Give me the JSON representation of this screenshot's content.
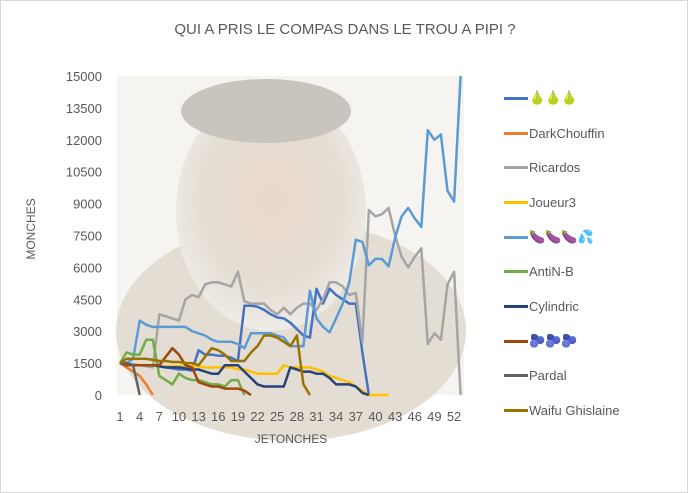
{
  "chart_data": {
    "type": "line",
    "title": "QUI A PRIS LE COMPAS DANS LE TROU A PIPI ?",
    "xlabel": "JETONCHES",
    "ylabel": "MONCHES",
    "ylim": [
      0,
      15000
    ],
    "yticks": [
      "0",
      "1500",
      "3000",
      "4500",
      "6000",
      "7500",
      "9000",
      "10500",
      "12000",
      "13500",
      "15000"
    ],
    "xticks": [
      "1",
      "4",
      "7",
      "10",
      "13",
      "16",
      "19",
      "22",
      "25",
      "28",
      "31",
      "34",
      "37",
      "40",
      "43",
      "46",
      "49",
      "52"
    ],
    "x_count": 53,
    "legend_position": "right",
    "series": [
      {
        "name": "🍐🍐🍐",
        "color": "#4472C4",
        "values": [
          1500,
          1450,
          1400,
          1400,
          1400,
          1400,
          1350,
          1300,
          1250,
          1200,
          1200,
          1150,
          2100,
          1900,
          1900,
          1850,
          1850,
          1750,
          1600,
          4200,
          4200,
          4150,
          4000,
          3800,
          3650,
          3600,
          3400,
          3100,
          2800,
          2700,
          5000,
          4300,
          5000,
          4700,
          4500,
          4300,
          4300,
          2000,
          0
        ]
      },
      {
        "name": "DarkChouffin",
        "color": "#ED7D31",
        "values": [
          1500,
          1300,
          1100,
          900,
          500,
          0
        ]
      },
      {
        "name": "Ricardos",
        "color": "#A5A5A5",
        "values": [
          1500,
          1500,
          1450,
          1400,
          1350,
          1300,
          3800,
          3700,
          3600,
          3500,
          4500,
          4700,
          4600,
          5200,
          5300,
          5300,
          5200,
          5100,
          5800,
          4400,
          4300,
          4300,
          4300,
          4000,
          3800,
          4100,
          3800,
          4100,
          4300,
          4300,
          4000,
          4500,
          5300,
          5300,
          5100,
          4700,
          4800,
          2500,
          8700,
          8400,
          8500,
          8800,
          7500,
          6500,
          6000,
          6500,
          6900,
          2400,
          2900,
          2600,
          5200,
          5800,
          0
        ]
      },
      {
        "name": "Joueur3",
        "color": "#FFC000",
        "values": [
          1500,
          1450,
          1400,
          1400,
          1400,
          1400,
          1350,
          1350,
          1350,
          1350,
          1350,
          1350,
          1350,
          1300,
          1300,
          1300,
          1300,
          1300,
          1200,
          1200,
          1100,
          1000,
          1000,
          1000,
          1000,
          1400,
          1300,
          1300,
          1300,
          1300,
          1200,
          1100,
          900,
          800,
          700,
          600,
          400,
          200,
          0,
          0,
          0,
          0
        ]
      },
      {
        "name": "🍆🍆🍆💦",
        "color": "#5B9BD5",
        "values": [
          1500,
          1500,
          1700,
          3500,
          3300,
          3200,
          3200,
          3200,
          3200,
          3200,
          3200,
          3000,
          2900,
          2800,
          2600,
          2500,
          2500,
          2500,
          2400,
          2200,
          2900,
          2900,
          2900,
          2900,
          2800,
          2700,
          2300,
          2300,
          2300,
          4900,
          3600,
          3200,
          2950,
          3600,
          4300,
          5300,
          7300,
          7200,
          6100,
          6400,
          6400,
          6050,
          7400,
          8400,
          8800,
          8300,
          7900,
          12450,
          12000,
          12250,
          9600,
          9100,
          15000
        ]
      },
      {
        "name": "AntiN-B",
        "color": "#70AD47",
        "values": [
          1500,
          2000,
          1900,
          1900,
          2600,
          2600,
          900,
          700,
          500,
          1000,
          800,
          700,
          700,
          600,
          500,
          500,
          400,
          700,
          700,
          0
        ]
      },
      {
        "name": "Cylindric",
        "color": "#264478",
        "values": [
          1500,
          1450,
          1400,
          1400,
          1400,
          1400,
          1350,
          1300,
          1300,
          1300,
          1250,
          1200,
          1200,
          1100,
          1000,
          1000,
          1400,
          1400,
          1400,
          1100,
          800,
          500,
          400,
          400,
          400,
          400,
          1300,
          1200,
          1100,
          1100,
          1000,
          1000,
          800,
          500,
          500,
          500,
          400,
          100,
          0
        ]
      },
      {
        "name": "🫐🫐🫐",
        "color": "#9E480E",
        "values": [
          1500,
          1400,
          1400,
          1400,
          1400,
          1400,
          1400,
          1800,
          2200,
          1900,
          1400,
          1300,
          600,
          500,
          400,
          400,
          300,
          300,
          300,
          200,
          0
        ]
      },
      {
        "name": "Pardal",
        "color": "#636363",
        "values": [
          1500,
          1500,
          1400,
          0
        ]
      },
      {
        "name": "Waifu Ghislaine",
        "color": "#997300",
        "values": [
          1500,
          1700,
          1700,
          1700,
          1700,
          1650,
          1600,
          1600,
          1550,
          1550,
          1500,
          1500,
          1400,
          1800,
          2200,
          2100,
          1900,
          1600,
          1600,
          1600,
          2000,
          2300,
          2800,
          2800,
          2700,
          2500,
          2300,
          2800,
          500,
          0
        ]
      }
    ]
  }
}
